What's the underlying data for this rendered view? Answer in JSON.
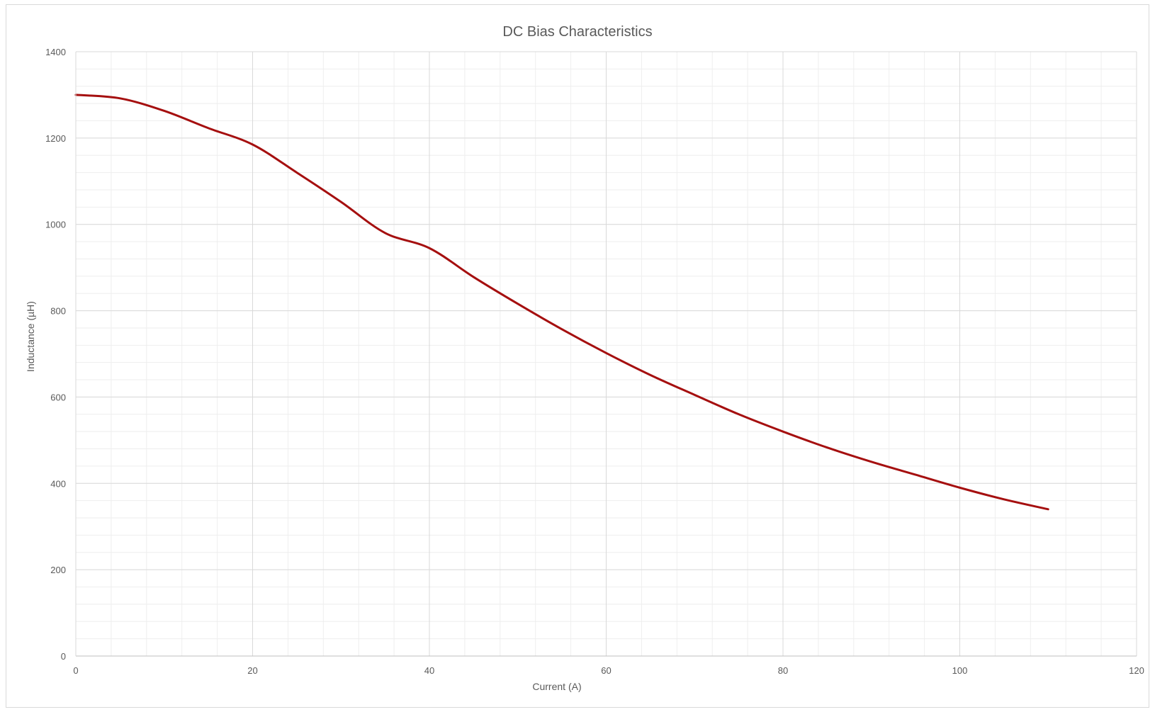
{
  "chart_data": {
    "type": "line",
    "title": "DC Bias Characteristics",
    "xlabel": "Current (A)",
    "ylabel": "Inductance (µH)",
    "xlim": [
      0,
      120
    ],
    "ylim": [
      0,
      1400
    ],
    "xticks": [
      0,
      20,
      40,
      60,
      80,
      100,
      120
    ],
    "yticks": [
      0,
      200,
      400,
      600,
      800,
      1000,
      1200,
      1400
    ],
    "grid": true,
    "minor_grid": true,
    "legend": "none",
    "series": [
      {
        "color": "#a50f0f",
        "x": [
          0,
          5,
          10,
          15,
          20,
          25,
          30,
          35,
          40,
          45,
          50,
          55,
          60,
          65,
          70,
          75,
          80,
          85,
          90,
          95,
          100,
          105,
          110
        ],
        "y": [
          1300,
          1292,
          1263,
          1223,
          1185,
          1120,
          1052,
          980,
          945,
          878,
          816,
          757,
          702,
          651,
          605,
          560,
          520,
          483,
          450,
          420,
          390,
          363,
          340
        ]
      }
    ]
  }
}
